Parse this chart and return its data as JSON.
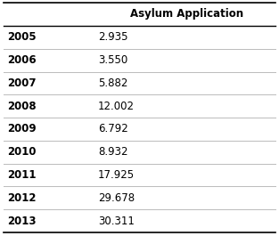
{
  "years": [
    "2005",
    "2006",
    "2007",
    "2008",
    "2009",
    "2010",
    "2011",
    "2012",
    "2013"
  ],
  "values": [
    "2.935",
    "3.550",
    "5.882",
    "12.002",
    "6.792",
    "8.932",
    "17.925",
    "29.678",
    "30.311"
  ],
  "col_header": "Asylum Application",
  "background_color": "#ffffff",
  "line_color": "#bbbbbb",
  "border_color": "#000000",
  "header_fontsize": 8.5,
  "cell_fontsize": 8.5,
  "fig_width": 3.13,
  "fig_height": 2.65,
  "dpi": 100
}
